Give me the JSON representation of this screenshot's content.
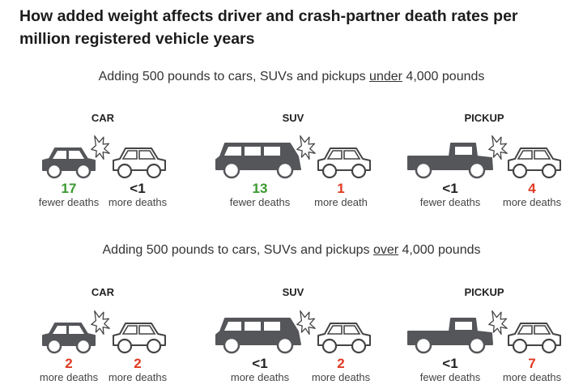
{
  "title": "How added weight affects driver and crash-partner death rates per million registered vehicle years",
  "sections": [
    {
      "subtitle_pre": "Adding 500 pounds to cars, SUVs and pickups ",
      "subtitle_emph": "under",
      "subtitle_post": " 4,000 pounds",
      "panels": [
        {
          "label": "CAR",
          "driver": {
            "value": "17",
            "caption": "fewer deaths"
          },
          "partner": {
            "value": "<1",
            "caption": "more deaths"
          }
        },
        {
          "label": "SUV",
          "driver": {
            "value": "13",
            "caption": "fewer deaths"
          },
          "partner": {
            "value": "1",
            "caption": "more death"
          }
        },
        {
          "label": "PICKUP",
          "driver": {
            "value": "<1",
            "caption": "fewer deaths"
          },
          "partner": {
            "value": "4",
            "caption": "more deaths"
          }
        }
      ]
    },
    {
      "subtitle_pre": "Adding 500 pounds to cars, SUVs and pickups ",
      "subtitle_emph": "over",
      "subtitle_post": " 4,000 pounds",
      "panels": [
        {
          "label": "CAR",
          "driver": {
            "value": "2",
            "caption": "more deaths"
          },
          "partner": {
            "value": "2",
            "caption": "more deaths"
          }
        },
        {
          "label": "SUV",
          "driver": {
            "value": "<1",
            "caption": "more deaths"
          },
          "partner": {
            "value": "2",
            "caption": "more deaths"
          }
        },
        {
          "label": "PICKUP",
          "driver": {
            "value": "<1",
            "caption": "fewer deaths"
          },
          "partner": {
            "value": "7",
            "caption": "more deaths"
          }
        }
      ]
    }
  ],
  "colors": {
    "fewer": "#3a9a2f",
    "more": "#e03a22",
    "neutral": "#222222",
    "vehicle_dark": "#55565a",
    "vehicle_light": "#ffffff",
    "outline": "#444444"
  },
  "icons": {
    "car": "car-icon",
    "suv": "suv-icon",
    "pickup": "pickup-icon",
    "partner": "partner-car-icon",
    "crash": "crash-burst-icon"
  }
}
